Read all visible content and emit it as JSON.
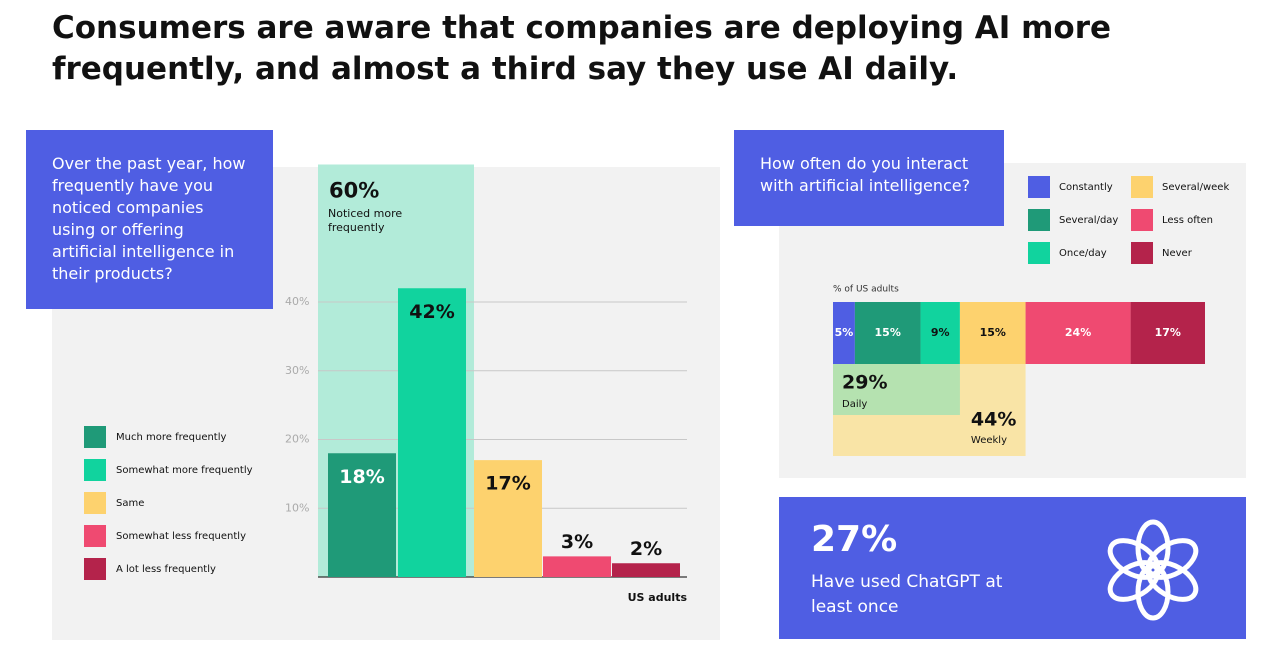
{
  "title": "Consumers are aware that companies are deploying AI more frequently, and almost a third say they use AI daily.",
  "chart_data": [
    {
      "type": "bar",
      "question": "Over the past year, how frequently have you noticed companies using or offering artificial intelligence in their products?",
      "categories": [
        "Much more frequently",
        "Somewhat more frequently",
        "Same",
        "Somewhat less frequently",
        "A lot less frequently"
      ],
      "values": [
        18,
        42,
        17,
        3,
        2
      ],
      "value_labels": [
        "18%",
        "42%",
        "17%",
        "3%",
        "2%"
      ],
      "colors": [
        "#1f9a78",
        "#11d39e",
        "#fdd26e",
        "#ef4a71",
        "#b4234b"
      ],
      "ylim": [
        0,
        40
      ],
      "yticks": [
        {
          "value": 10,
          "label": "10%"
        },
        {
          "value": 20,
          "label": "20%"
        },
        {
          "value": 30,
          "label": "30%"
        },
        {
          "value": 40,
          "label": "40%"
        }
      ],
      "grid": true,
      "x_label": "US adults",
      "annotation": {
        "value": 60,
        "value_label": "60%",
        "text": "Noticed more frequently"
      }
    },
    {
      "type": "stacked-bar",
      "question": "How often do you interact with artificial intelligence?",
      "axis_label": "% of US adults",
      "categories": [
        "Constantly",
        "Several/day",
        "Once/day",
        "Several/week",
        "Less often",
        "Never"
      ],
      "values": [
        5,
        15,
        9,
        15,
        24,
        17
      ],
      "value_labels": [
        "5%",
        "15%",
        "9%",
        "15%",
        "24%",
        "17%"
      ],
      "colors": [
        "#4f5ee3",
        "#1f9a78",
        "#11d39e",
        "#fdd26e",
        "#ef4a71",
        "#b4234b"
      ],
      "groups": [
        {
          "label": "Daily",
          "value": 29,
          "value_label": "29%",
          "color": "#b5e2b0"
        },
        {
          "label": "Weekly",
          "value": 44,
          "value_label": "44%",
          "color": "#f9e4a6"
        }
      ]
    }
  ],
  "callout": {
    "value": 27,
    "value_label": "27%",
    "text": "Have used ChatGPT at least once"
  }
}
